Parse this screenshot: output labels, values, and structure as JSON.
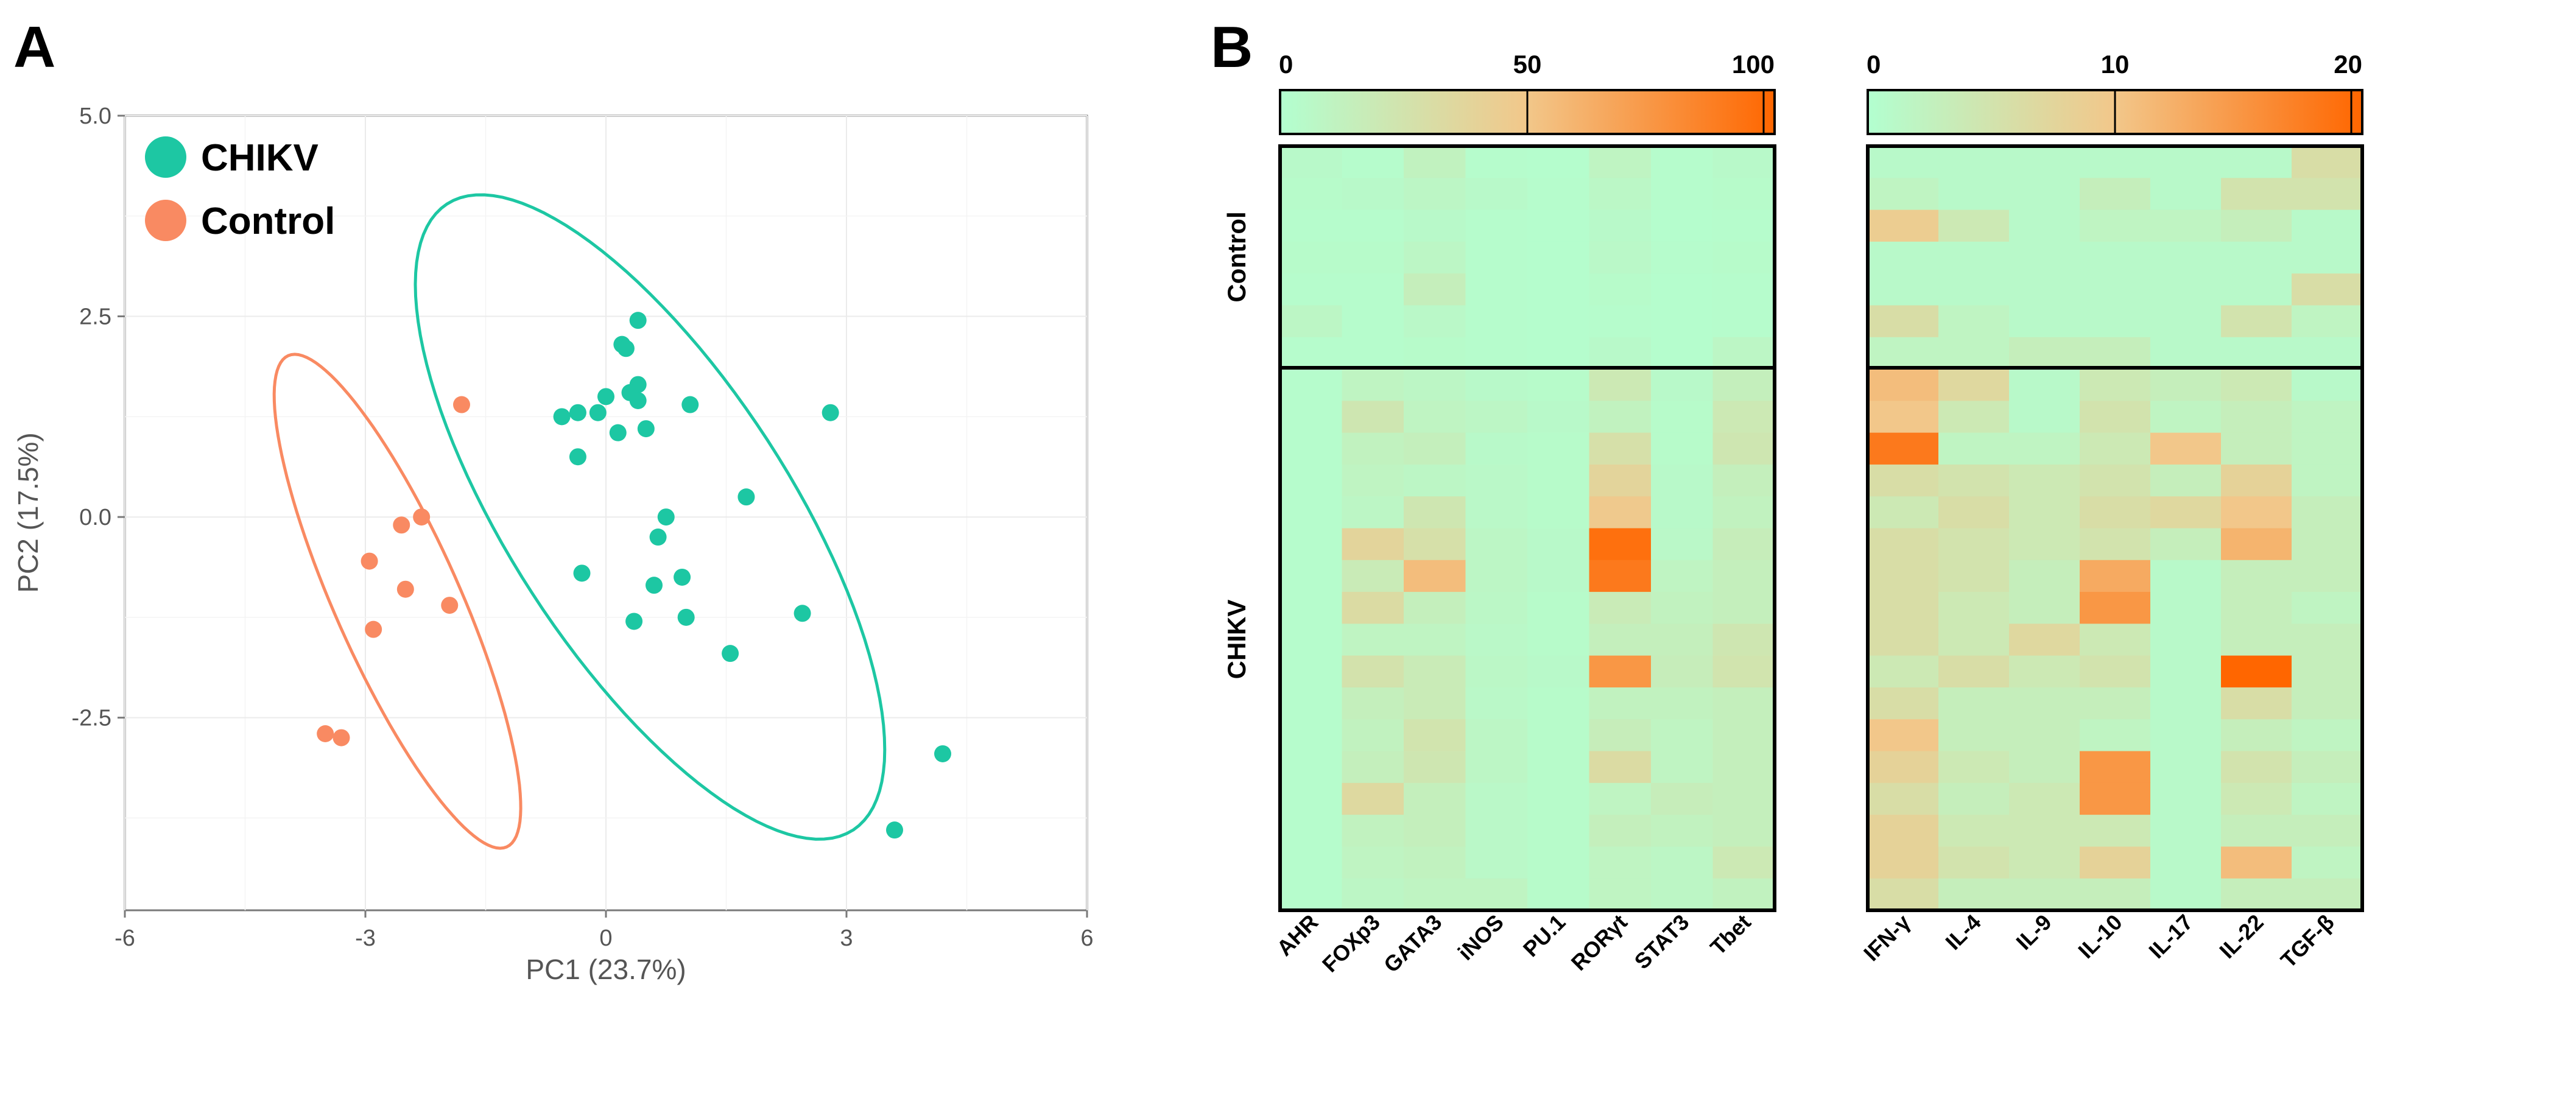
{
  "panels": {
    "a_label": "A",
    "b_label": "B"
  },
  "colors": {
    "chikv": "#1dc7a3",
    "control": "#f98a62",
    "heat_low": "#b2ffd0",
    "heat_mid": "#f2c78a",
    "heat_high": "#ff6600",
    "grid": "#ebebeb"
  },
  "chart_data": [
    {
      "type": "scatter",
      "title": "",
      "xlabel": "PC1 (23.7%)",
      "ylabel": "PC2 (17.5%)",
      "xlim": [
        -6,
        6
      ],
      "ylim": [
        -4.9,
        5.0
      ],
      "x_ticks": [
        -6,
        -3,
        0,
        3,
        6
      ],
      "x_tick_labels": [
        "-6",
        "-3",
        "0",
        "3",
        "6"
      ],
      "y_ticks": [
        5.0,
        2.5,
        0.0,
        -2.5
      ],
      "y_tick_labels": [
        "5.0",
        "2.5",
        "0.0",
        "-2.5"
      ],
      "legend": "top-left",
      "series": [
        {
          "name": "CHIKV",
          "color": "#1dc7a3",
          "points": [
            [
              0.4,
              2.45
            ],
            [
              0.2,
              2.15
            ],
            [
              0.25,
              2.1
            ],
            [
              0.4,
              1.65
            ],
            [
              0.3,
              1.55
            ],
            [
              0.4,
              1.45
            ],
            [
              0.0,
              1.5
            ],
            [
              -0.1,
              1.3
            ],
            [
              -0.35,
              1.3
            ],
            [
              -0.55,
              1.25
            ],
            [
              0.15,
              1.05
            ],
            [
              0.5,
              1.1
            ],
            [
              1.05,
              1.4
            ],
            [
              2.8,
              1.3
            ],
            [
              -0.35,
              0.75
            ],
            [
              1.75,
              0.25
            ],
            [
              0.75,
              0.0
            ],
            [
              0.65,
              -0.25
            ],
            [
              -0.3,
              -0.7
            ],
            [
              0.6,
              -0.85
            ],
            [
              0.95,
              -0.75
            ],
            [
              0.35,
              -1.3
            ],
            [
              1.0,
              -1.25
            ],
            [
              2.45,
              -1.2
            ],
            [
              1.55,
              -1.7
            ],
            [
              4.2,
              -2.95
            ],
            [
              3.6,
              -3.9
            ]
          ],
          "ellipse": {
            "center": [
              0.55,
              0.0
            ],
            "semi_major": 4.65,
            "semi_minor": 1.75,
            "angle_deg": -57
          }
        },
        {
          "name": "Control",
          "color": "#f98a62",
          "points": [
            [
              -1.8,
              1.4
            ],
            [
              -2.3,
              0.0
            ],
            [
              -2.55,
              -0.1
            ],
            [
              -2.95,
              -0.55
            ],
            [
              -2.5,
              -0.9
            ],
            [
              -1.95,
              -1.1
            ],
            [
              -2.9,
              -1.4
            ],
            [
              -3.5,
              -2.7
            ],
            [
              -3.3,
              -2.75
            ]
          ],
          "ellipse": {
            "center": [
              -2.6,
              -1.05
            ],
            "semi_major": 3.35,
            "semi_minor": 0.78,
            "angle_deg": -66
          }
        }
      ]
    },
    {
      "type": "heatmap",
      "title": "",
      "columns": [
        "AHR",
        "FOXp3",
        "GATA3",
        "iNOS",
        "PU.1",
        "RORγt",
        "STAT3",
        "Tbet"
      ],
      "row_groups": [
        {
          "name": "Control",
          "rows": 7
        },
        {
          "name": "CHIKV",
          "rows": 17
        }
      ],
      "colorbar": {
        "min": 0,
        "max": 100,
        "ticks": [
          0,
          50,
          100
        ],
        "tick_labels": [
          "0",
          "50",
          "100"
        ]
      },
      "values": [
        [
          5,
          3,
          12,
          3,
          2,
          10,
          3,
          5
        ],
        [
          4,
          5,
          8,
          5,
          3,
          7,
          3,
          4
        ],
        [
          3,
          3,
          5,
          3,
          2,
          5,
          2,
          3
        ],
        [
          4,
          4,
          8,
          3,
          2,
          6,
          3,
          4
        ],
        [
          3,
          3,
          15,
          3,
          2,
          4,
          2,
          3
        ],
        [
          8,
          3,
          6,
          3,
          2,
          3,
          2,
          3
        ],
        [
          3,
          3,
          4,
          3,
          2,
          5,
          2,
          8
        ],
        [
          3,
          10,
          8,
          5,
          4,
          20,
          5,
          14
        ],
        [
          3,
          22,
          10,
          8,
          5,
          12,
          4,
          20
        ],
        [
          3,
          12,
          14,
          5,
          4,
          28,
          4,
          22
        ],
        [
          3,
          10,
          8,
          6,
          4,
          38,
          5,
          14
        ],
        [
          3,
          8,
          22,
          6,
          4,
          48,
          5,
          12
        ],
        [
          3,
          38,
          28,
          8,
          5,
          95,
          6,
          16
        ],
        [
          3,
          18,
          55,
          8,
          5,
          90,
          10,
          14
        ],
        [
          3,
          32,
          14,
          7,
          4,
          18,
          12,
          14
        ],
        [
          3,
          10,
          10,
          6,
          4,
          14,
          14,
          22
        ],
        [
          3,
          26,
          18,
          7,
          5,
          75,
          16,
          24
        ],
        [
          3,
          14,
          18,
          6,
          4,
          12,
          12,
          14
        ],
        [
          3,
          12,
          24,
          8,
          4,
          16,
          10,
          14
        ],
        [
          3,
          14,
          22,
          8,
          4,
          32,
          10,
          14
        ],
        [
          3,
          34,
          14,
          6,
          4,
          10,
          16,
          14
        ],
        [
          3,
          12,
          14,
          6,
          4,
          14,
          12,
          14
        ],
        [
          3,
          10,
          12,
          6,
          4,
          10,
          8,
          20
        ],
        [
          3,
          8,
          10,
          10,
          4,
          10,
          8,
          12
        ]
      ]
    },
    {
      "type": "heatmap",
      "title": "",
      "columns": [
        "IFN-γ",
        "IL-4",
        "IL-9",
        "IL-10",
        "IL-17",
        "IL-22",
        "TGF-β"
      ],
      "row_groups": [
        {
          "name": "Control",
          "rows": 7
        },
        {
          "name": "CHIKV",
          "rows": 17
        }
      ],
      "colorbar": {
        "min": 0,
        "max": 20,
        "ticks": [
          0,
          10,
          20
        ],
        "tick_labels": [
          "0",
          "10",
          "20"
        ]
      },
      "values": [
        [
          1,
          1,
          1,
          1,
          1,
          1,
          6
        ],
        [
          2,
          1,
          1,
          3,
          1,
          5,
          5
        ],
        [
          9,
          4,
          1,
          2,
          2,
          3,
          1
        ],
        [
          1,
          1,
          1,
          1,
          1,
          1,
          1
        ],
        [
          1,
          1,
          1,
          1,
          1,
          1,
          6
        ],
        [
          6,
          2,
          1,
          1,
          1,
          5,
          2
        ],
        [
          2,
          2,
          3,
          3,
          1,
          1,
          1
        ],
        [
          11,
          7,
          1,
          4,
          3,
          4,
          1
        ],
        [
          10,
          4,
          1,
          5,
          2,
          3,
          2
        ],
        [
          18,
          2,
          2,
          4,
          10,
          3,
          2
        ],
        [
          6,
          5,
          4,
          5,
          3,
          8,
          2
        ],
        [
          4,
          6,
          4,
          6,
          7,
          10,
          3
        ],
        [
          6,
          5,
          4,
          5,
          3,
          12,
          3
        ],
        [
          6,
          5,
          3,
          13,
          1,
          3,
          3
        ],
        [
          6,
          4,
          3,
          15,
          1,
          3,
          2
        ],
        [
          6,
          4,
          7,
          4,
          1,
          3,
          3
        ],
        [
          4,
          6,
          4,
          5,
          1,
          20,
          3
        ],
        [
          6,
          3,
          3,
          3,
          1,
          6,
          3
        ],
        [
          10,
          3,
          3,
          2,
          1,
          3,
          2
        ],
        [
          8,
          4,
          3,
          15,
          1,
          5,
          3
        ],
        [
          6,
          3,
          4,
          15,
          1,
          4,
          2
        ],
        [
          8,
          4,
          4,
          4,
          1,
          3,
          3
        ],
        [
          8,
          5,
          4,
          8,
          1,
          11,
          2
        ],
        [
          6,
          3,
          3,
          3,
          1,
          3,
          3
        ]
      ]
    }
  ]
}
